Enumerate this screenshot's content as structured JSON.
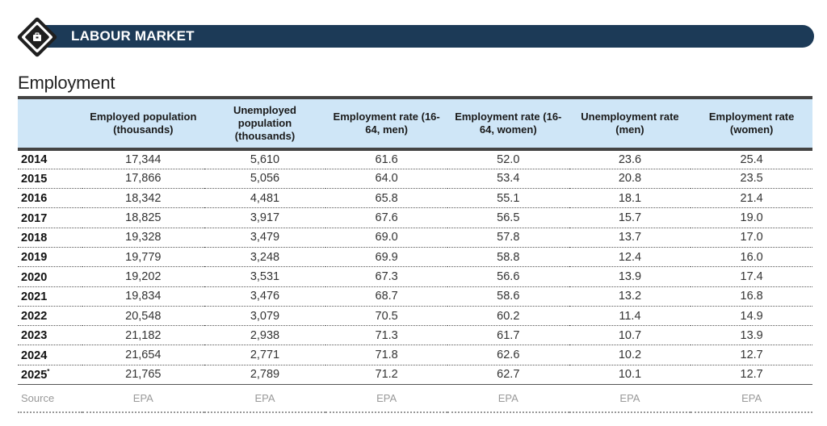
{
  "banner": {
    "title": "LABOUR MARKET",
    "icon": "briefcase-icon"
  },
  "section": {
    "title": "Employment"
  },
  "table": {
    "headers": [
      "",
      "Employed population (thousands)",
      "Unemployed population (thousands)",
      "Employment rate (16-64, men)",
      "Employment rate (16-64, women)",
      "Unemployment rate (men)",
      "Employment rate (women)"
    ],
    "rows": [
      {
        "year": "2014",
        "sup": "",
        "values": [
          "17,344",
          "5,610",
          "61.6",
          "52.0",
          "23.6",
          "25.4"
        ]
      },
      {
        "year": "2015",
        "sup": "",
        "values": [
          "17,866",
          "5,056",
          "64.0",
          "53.4",
          "20.8",
          "23.5"
        ]
      },
      {
        "year": "2016",
        "sup": "",
        "values": [
          "18,342",
          "4,481",
          "65.8",
          "55.1",
          "18.1",
          "21.4"
        ]
      },
      {
        "year": "2017",
        "sup": "",
        "values": [
          "18,825",
          "3,917",
          "67.6",
          "56.5",
          "15.7",
          "19.0"
        ]
      },
      {
        "year": "2018",
        "sup": "",
        "values": [
          "19,328",
          "3,479",
          "69.0",
          "57.8",
          "13.7",
          "17.0"
        ]
      },
      {
        "year": "2019",
        "sup": "",
        "values": [
          "19,779",
          "3,248",
          "69.9",
          "58.8",
          "12.4",
          "16.0"
        ]
      },
      {
        "year": "2020",
        "sup": "",
        "values": [
          "19,202",
          "3,531",
          "67.3",
          "56.6",
          "13.9",
          "17.4"
        ]
      },
      {
        "year": "2021",
        "sup": "",
        "values": [
          "19,834",
          "3,476",
          "68.7",
          "58.6",
          "13.2",
          "16.8"
        ]
      },
      {
        "year": "2022",
        "sup": "",
        "values": [
          "20,548",
          "3,079",
          "70.5",
          "60.2",
          "11.4",
          "14.9"
        ]
      },
      {
        "year": "2023",
        "sup": "",
        "values": [
          "21,182",
          "2,938",
          "71.3",
          "61.7",
          "10.7",
          "13.9"
        ]
      },
      {
        "year": "2024",
        "sup": "",
        "values": [
          "21,654",
          "2,771",
          "71.8",
          "62.6",
          "10.2",
          "12.7"
        ]
      },
      {
        "year": "2025",
        "sup": "*",
        "values": [
          "21,765",
          "2,789",
          "71.2",
          "62.7",
          "10.1",
          "12.7"
        ]
      }
    ],
    "footer": {
      "label": "Source",
      "values": [
        "EPA",
        "EPA",
        "EPA",
        "EPA",
        "EPA",
        "EPA"
      ]
    }
  },
  "colors": {
    "banner": "#1c3a57",
    "header_bg": "#cfe6f7",
    "rule": "#444444"
  }
}
